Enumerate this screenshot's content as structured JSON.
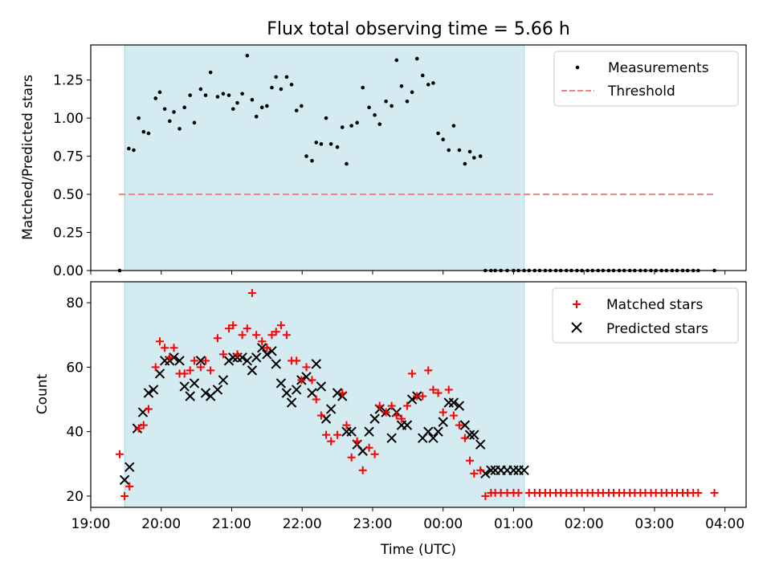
{
  "title": "Flux total observing time = 5.66 h",
  "chart_data": [
    {
      "type": "scatter",
      "ylabel": "Matched/Predicted stars",
      "xlabel": "",
      "x_unit": "hours since 19:00 UTC",
      "xlim": [
        19.0,
        28.3
      ],
      "ylim": [
        0.0,
        1.48
      ],
      "yticks": [
        "0.00",
        "0.25",
        "0.50",
        "0.75",
        "1.00",
        "1.25"
      ],
      "legend_position": "top-right",
      "shaded_region": {
        "from": 19.48,
        "to": 25.15,
        "color": "#d4ebf1"
      },
      "threshold": {
        "name": "Threshold",
        "value": 0.5,
        "from": 19.4,
        "to": 27.85,
        "color": "#f08080"
      },
      "series": [
        {
          "name": "Measurements",
          "color": "#000000",
          "x": [
            19.41,
            19.54,
            19.61,
            19.68,
            19.75,
            19.82,
            19.92,
            19.98,
            20.05,
            20.12,
            20.18,
            20.26,
            20.33,
            20.41,
            20.47,
            20.56,
            20.63,
            20.7,
            20.8,
            20.88,
            20.96,
            21.02,
            21.08,
            21.15,
            21.22,
            21.29,
            21.35,
            21.43,
            21.5,
            21.57,
            21.63,
            21.7,
            21.78,
            21.85,
            21.92,
            21.99,
            22.06,
            22.14,
            22.2,
            22.27,
            22.34,
            22.41,
            22.5,
            22.57,
            22.63,
            22.7,
            22.78,
            22.86,
            22.95,
            23.03,
            23.1,
            23.19,
            23.27,
            23.34,
            23.41,
            23.49,
            23.56,
            23.63,
            23.71,
            23.79,
            23.86,
            23.93,
            24.0,
            24.08,
            24.15,
            24.23,
            24.31,
            24.38,
            24.44,
            24.53,
            24.6,
            24.68,
            24.74,
            24.82,
            24.91,
            25.0,
            25.07,
            25.15,
            25.22,
            25.3,
            25.37,
            25.45,
            25.52,
            25.6,
            25.67,
            25.75,
            25.82,
            25.9,
            25.97,
            26.05,
            26.12,
            26.2,
            26.27,
            26.35,
            26.42,
            26.5,
            26.57,
            26.65,
            26.72,
            26.8,
            26.87,
            26.95,
            27.02,
            27.1,
            27.17,
            27.25,
            27.32,
            27.4,
            27.47,
            27.55,
            27.62,
            27.85
          ],
          "y": [
            0.0,
            0.8,
            0.79,
            1.0,
            0.91,
            0.9,
            1.13,
            1.17,
            1.06,
            0.98,
            1.04,
            0.93,
            1.07,
            1.15,
            0.97,
            1.19,
            1.15,
            1.3,
            1.14,
            1.16,
            1.15,
            1.06,
            1.1,
            1.16,
            1.41,
            1.12,
            1.01,
            1.07,
            1.08,
            1.2,
            1.27,
            1.19,
            1.27,
            1.22,
            1.05,
            1.08,
            0.75,
            0.72,
            0.84,
            0.83,
            1.0,
            0.83,
            0.81,
            0.94,
            0.7,
            0.95,
            0.97,
            1.2,
            1.07,
            1.02,
            0.96,
            1.11,
            1.08,
            1.38,
            1.21,
            1.11,
            1.17,
            1.39,
            1.28,
            1.22,
            1.23,
            0.9,
            0.86,
            0.79,
            0.95,
            0.79,
            0.7,
            0.78,
            0.74,
            0.75,
            0.0,
            0.0,
            0.0,
            0.0,
            0.0,
            0.0,
            0.0,
            0.0,
            0.0,
            0.0,
            0.0,
            0.0,
            0.0,
            0.0,
            0.0,
            0.0,
            0.0,
            0.0,
            0.0,
            0.0,
            0.0,
            0.0,
            0.0,
            0.0,
            0.0,
            0.0,
            0.0,
            0.0,
            0.0,
            0.0,
            0.0,
            0.0,
            0.0,
            0.0,
            0.0,
            0.0,
            0.0,
            0.0,
            0.0,
            0.0,
            0.0,
            0.0
          ]
        }
      ]
    },
    {
      "type": "scatter",
      "ylabel": "Count",
      "xlabel": "Time (UTC)",
      "x_unit": "hours since 19:00 UTC",
      "xlim": [
        19.0,
        28.3
      ],
      "ylim": [
        16.5,
        86.5
      ],
      "yticks": [
        "20",
        "40",
        "60",
        "80"
      ],
      "xticks": [
        {
          "value": 19,
          "label": "19:00"
        },
        {
          "value": 20,
          "label": "20:00"
        },
        {
          "value": 21,
          "label": "21:00"
        },
        {
          "value": 22,
          "label": "22:00"
        },
        {
          "value": 23,
          "label": "23:00"
        },
        {
          "value": 24,
          "label": "00:00"
        },
        {
          "value": 25,
          "label": "01:00"
        },
        {
          "value": 26,
          "label": "02:00"
        },
        {
          "value": 27,
          "label": "03:00"
        },
        {
          "value": 28,
          "label": "04:00"
        }
      ],
      "legend_position": "top-right",
      "shaded_region": {
        "from": 19.48,
        "to": 25.15,
        "color": "#d4ebf1"
      },
      "series": [
        {
          "name": "Matched stars",
          "marker": "plus",
          "color": "#ff0000",
          "x": [
            19.41,
            19.48,
            19.55,
            19.68,
            19.75,
            19.82,
            19.92,
            19.98,
            20.05,
            20.12,
            20.18,
            20.26,
            20.33,
            20.41,
            20.47,
            20.56,
            20.63,
            20.7,
            20.8,
            20.88,
            20.96,
            21.02,
            21.08,
            21.15,
            21.22,
            21.29,
            21.35,
            21.43,
            21.5,
            21.57,
            21.63,
            21.7,
            21.78,
            21.85,
            21.92,
            21.99,
            22.06,
            22.14,
            22.2,
            22.27,
            22.34,
            22.41,
            22.5,
            22.57,
            22.63,
            22.7,
            22.78,
            22.86,
            22.95,
            23.03,
            23.1,
            23.19,
            23.27,
            23.34,
            23.41,
            23.49,
            23.56,
            23.63,
            23.71,
            23.79,
            23.86,
            23.93,
            24.0,
            24.08,
            24.15,
            24.23,
            24.31,
            24.38,
            24.44,
            24.53,
            24.6,
            24.68,
            24.74,
            24.82,
            24.91,
            25.0,
            25.07,
            25.22,
            25.3,
            25.37,
            25.45,
            25.52,
            25.6,
            25.67,
            25.75,
            25.82,
            25.9,
            25.97,
            26.05,
            26.12,
            26.2,
            26.27,
            26.35,
            26.42,
            26.5,
            26.57,
            26.65,
            26.72,
            26.8,
            26.87,
            26.95,
            27.02,
            27.1,
            27.17,
            27.25,
            27.32,
            27.4,
            27.47,
            27.55,
            27.62,
            27.85
          ],
          "y": [
            33,
            20,
            23,
            41,
            42,
            47,
            60,
            68,
            66,
            63,
            66,
            58,
            58,
            59,
            62,
            60,
            62,
            59,
            69,
            64,
            72,
            73,
            64,
            70,
            72,
            83,
            70,
            68,
            66,
            70,
            71,
            73,
            70,
            62,
            62,
            56,
            60,
            56,
            50,
            45,
            39,
            37,
            39,
            52,
            42,
            32,
            37,
            28,
            35,
            33,
            48,
            46,
            48,
            45,
            44,
            48,
            58,
            51,
            51,
            59,
            53,
            52,
            46,
            53,
            45,
            42,
            38,
            31,
            27,
            28,
            20,
            21,
            21,
            21,
            21,
            21,
            21,
            21,
            21,
            21,
            21,
            21,
            21,
            21,
            21,
            21,
            21,
            21,
            21,
            21,
            21,
            21,
            21,
            21,
            21,
            21,
            21,
            21,
            21,
            21,
            21,
            21,
            21,
            21,
            21,
            21,
            21,
            21,
            21,
            21,
            21
          ]
        },
        {
          "name": "Predicted stars",
          "marker": "x",
          "color": "#000000",
          "x": [
            19.48,
            19.55,
            19.66,
            19.74,
            19.82,
            19.89,
            19.98,
            20.05,
            20.12,
            20.18,
            20.26,
            20.33,
            20.41,
            20.47,
            20.56,
            20.63,
            20.7,
            20.8,
            20.88,
            20.96,
            21.02,
            21.08,
            21.15,
            21.22,
            21.29,
            21.35,
            21.43,
            21.5,
            21.57,
            21.63,
            21.7,
            21.78,
            21.85,
            21.92,
            21.99,
            22.06,
            22.14,
            22.2,
            22.27,
            22.34,
            22.41,
            22.5,
            22.57,
            22.63,
            22.7,
            22.78,
            22.86,
            22.95,
            23.03,
            23.1,
            23.19,
            23.27,
            23.34,
            23.41,
            23.49,
            23.56,
            23.63,
            23.71,
            23.79,
            23.86,
            23.93,
            24.0,
            24.08,
            24.15,
            24.23,
            24.31,
            24.38,
            24.44,
            24.53,
            24.6,
            24.68,
            24.74,
            24.82,
            24.91,
            25.0,
            25.07,
            25.15
          ],
          "y": [
            25,
            29,
            41,
            46,
            52,
            53,
            58,
            62,
            62,
            63,
            62,
            54,
            51,
            55,
            62,
            52,
            51,
            53,
            56,
            62,
            63,
            63,
            63,
            62,
            59,
            63,
            66,
            64,
            65,
            61,
            55,
            52,
            49,
            53,
            56,
            57,
            52,
            61,
            54,
            44,
            47,
            52,
            51,
            40,
            40,
            36,
            34,
            40,
            44,
            47,
            46,
            38,
            46,
            42,
            42,
            50,
            51,
            38,
            40,
            38,
            40,
            43,
            49,
            49,
            48,
            42,
            39,
            39,
            36,
            27,
            28,
            28,
            28,
            28,
            28,
            28,
            28
          ]
        }
      ]
    }
  ]
}
